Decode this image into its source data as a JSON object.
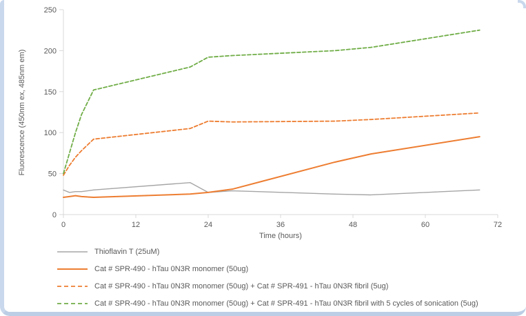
{
  "frame": {
    "border_left_color": "#c9d8ec",
    "border_bottom_color": "#bccee5"
  },
  "chart_data": {
    "type": "line",
    "title": "",
    "xlabel": "Time (hours)",
    "ylabel": "Fluorescence (450nm ex, 485nm em)",
    "xlim": [
      0,
      72
    ],
    "ylim": [
      0,
      250
    ],
    "x_ticks": [
      0,
      12,
      24,
      36,
      48,
      60,
      72
    ],
    "y_ticks": [
      0,
      50,
      100,
      150,
      200,
      250
    ],
    "grid": false,
    "legend_position": "bottom-left",
    "axis_color": "#d9d9d9",
    "text_color": "#595959",
    "x": [
      0,
      1,
      2,
      3,
      5,
      21,
      24,
      28,
      45,
      51,
      69
    ],
    "series": [
      {
        "name": "Thioflavin T (25uM)",
        "color": "#A5A5A5",
        "dash": "solid",
        "width": 1.4,
        "values": [
          30,
          27,
          28,
          28,
          30,
          39,
          27,
          29,
          25,
          24,
          30
        ]
      },
      {
        "name": "Cat # SPR-490 - hTau 0N3R monomer (50ug)",
        "color": "#ED7D31",
        "dash": "solid",
        "width": 2,
        "values": [
          21,
          22,
          23,
          22,
          21,
          25,
          27,
          31,
          64,
          74,
          95
        ]
      },
      {
        "name": "Cat # SPR-490 - hTau 0N3R monomer (50ug) + Cat # SPR-491 - hTau 0N3R fibril (5ug)",
        "color": "#ED7D31",
        "dash": "dashed",
        "width": 1.8,
        "values": [
          48,
          60,
          70,
          78,
          92,
          105,
          114,
          113,
          114,
          116,
          124
        ]
      },
      {
        "name": "Cat # SPR-490 - hTau 0N3R monomer (50ug) + Cat # SPR-491 - hTau 0N3R fibril with 5 cycles of sonication (5ug)",
        "color": "#70AD47",
        "dash": "dashed",
        "width": 1.8,
        "values": [
          50,
          75,
          100,
          122,
          152,
          180,
          192,
          194,
          200,
          204,
          225
        ]
      }
    ]
  }
}
